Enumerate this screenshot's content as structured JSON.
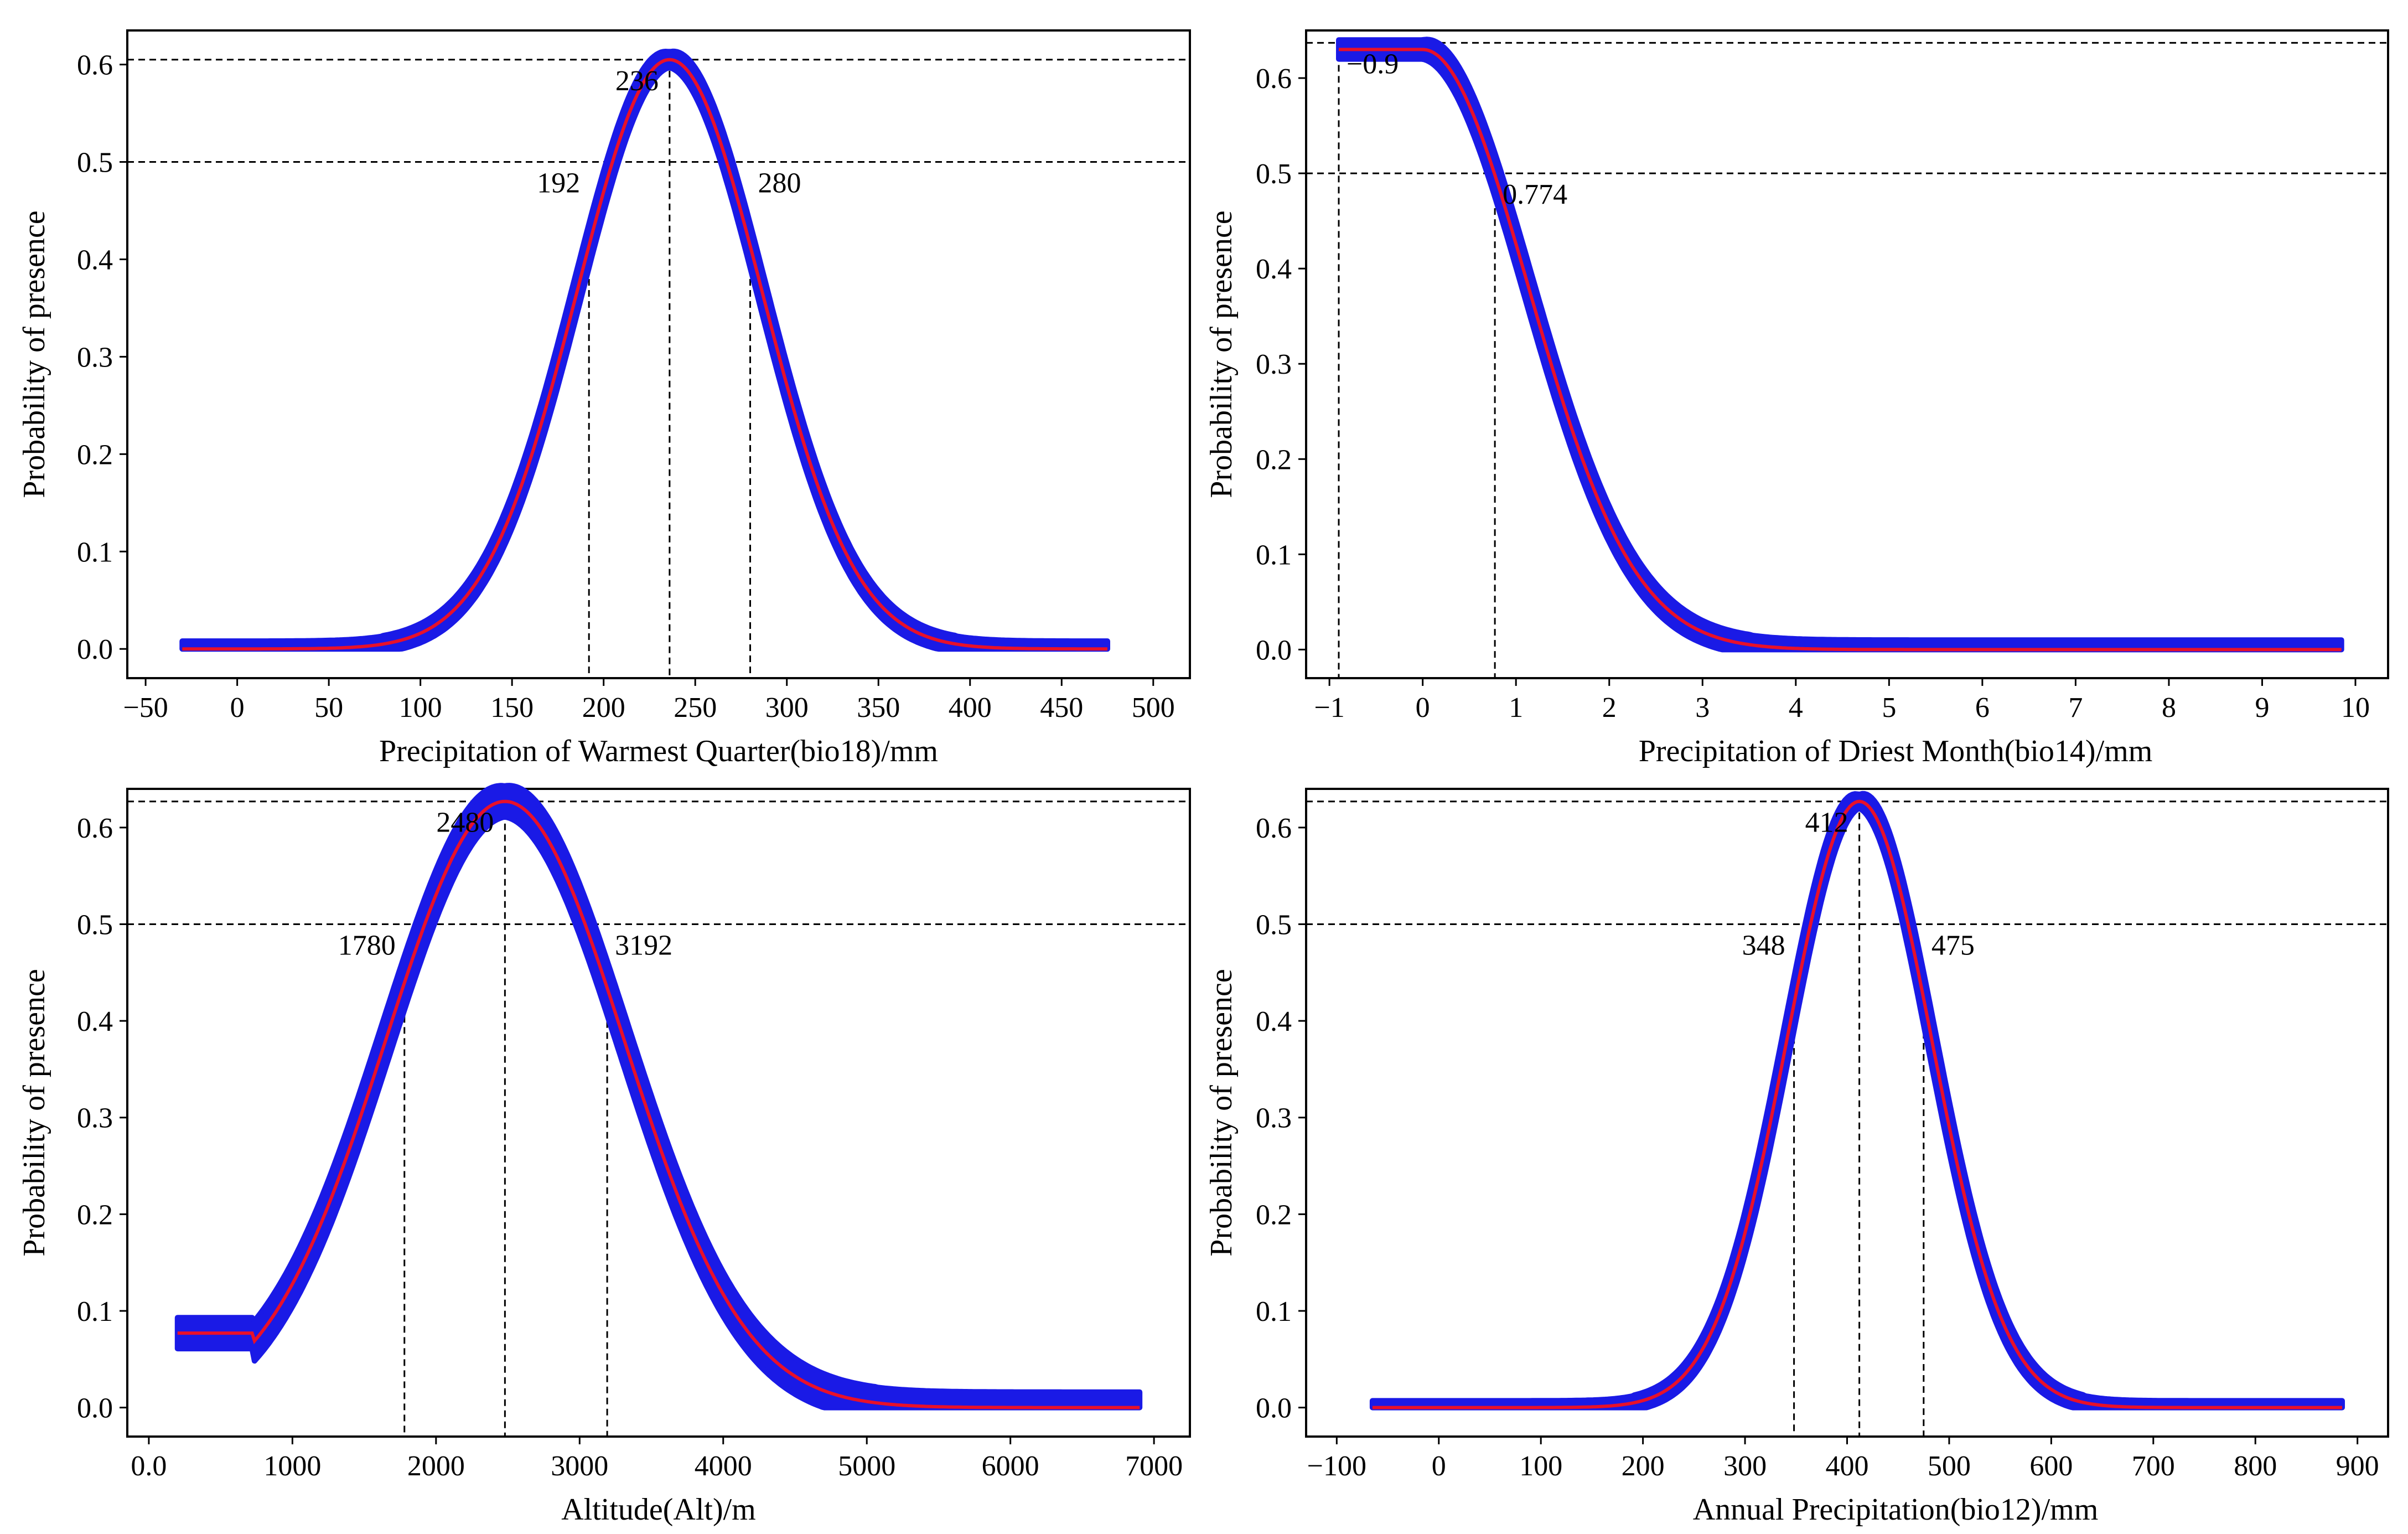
{
  "chart_data": [
    {
      "type": "line",
      "id": "bio18",
      "xlabel": "Precipitation of Warmest Quarter(bio18)/mm",
      "ylabel": "Probability of presence",
      "xlim": [
        -60,
        520
      ],
      "ylim": [
        -0.03,
        0.635
      ],
      "xticks": [
        -50,
        0,
        50,
        100,
        150,
        200,
        250,
        300,
        350,
        400,
        450,
        500
      ],
      "yticks": [
        0.0,
        0.1,
        0.2,
        0.3,
        0.4,
        0.5,
        0.6
      ],
      "curve": {
        "kind": "gauss",
        "mu": 236,
        "sigma": 50.5,
        "peak": 0.605,
        "xmin": -30,
        "xmax": 475,
        "band": 0.008
      },
      "ref_lines": {
        "horizontal": [
          0.605,
          0.5
        ],
        "vertical": [
          192,
          236,
          280
        ]
      },
      "annotations": [
        {
          "text": "236",
          "x": 236,
          "y": 0.605,
          "pos": "left"
        },
        {
          "text": "192",
          "x": 192,
          "y": 0.5,
          "pos": "below-left"
        },
        {
          "text": "280",
          "x": 280,
          "y": 0.5,
          "pos": "below-right"
        }
      ]
    },
    {
      "type": "line",
      "id": "bio14",
      "xlabel": "Precipitation of Driest Month(bio14)/mm",
      "ylabel": "Probability of presence",
      "xlim": [
        -1.25,
        10.35
      ],
      "ylim": [
        -0.03,
        0.65
      ],
      "xticks": [
        -1,
        0,
        1,
        2,
        3,
        4,
        5,
        6,
        7,
        8,
        9,
        10
      ],
      "yticks": [
        0.0,
        0.1,
        0.2,
        0.3,
        0.4,
        0.5,
        0.6
      ],
      "curve": {
        "kind": "halfgauss",
        "mu": 0,
        "sigma": 1.13,
        "peak": 0.63,
        "xmin": -0.9,
        "xmax": 9.85,
        "band": 0.01
      },
      "ref_lines": {
        "horizontal": [
          0.637,
          0.5
        ],
        "vertical": [
          -0.9,
          0.774
        ]
      },
      "annotations": [
        {
          "text": "−0.9",
          "x": -0.9,
          "y": 0.637,
          "pos": "below-right"
        },
        {
          "text": "0.774",
          "x": 0.774,
          "y": 0.5,
          "pos": "below-right"
        }
      ]
    },
    {
      "type": "line",
      "id": "alt",
      "xlabel": "Altitude(Alt)/m",
      "ylabel": "Probability of presence",
      "xlim": [
        -150,
        7250
      ],
      "ylim": [
        -0.03,
        0.64
      ],
      "xticks": [
        0,
        1000,
        2000,
        3000,
        4000,
        5000,
        6000,
        7000
      ],
      "xtick_labels": [
        "0.0",
        "1000",
        "2000",
        "3000",
        "4000",
        "5000",
        "6000",
        "7000"
      ],
      "yticks": [
        0.0,
        0.1,
        0.2,
        0.3,
        0.4,
        0.5,
        0.6
      ],
      "curve": {
        "kind": "gauss_floor",
        "mu": 2480,
        "sigma": 830,
        "peak": 0.627,
        "xmin": 200,
        "xmax": 6900,
        "floor": 0.077,
        "floor_until": 730,
        "band": 0.016
      },
      "ref_lines": {
        "horizontal": [
          0.627,
          0.5
        ],
        "vertical": [
          1780,
          2480,
          3192
        ]
      },
      "annotations": [
        {
          "text": "2480",
          "x": 2480,
          "y": 0.627,
          "pos": "left"
        },
        {
          "text": "1780",
          "x": 1780,
          "y": 0.5,
          "pos": "below-left"
        },
        {
          "text": "3192",
          "x": 3192,
          "y": 0.5,
          "pos": "below-right"
        }
      ]
    },
    {
      "type": "line",
      "id": "bio12",
      "xlabel": "Annual Precipitation(bio12)/mm",
      "ylabel": "Probability of presence",
      "xlim": [
        -130,
        930
      ],
      "ylim": [
        -0.03,
        0.64
      ],
      "xticks": [
        -100,
        0,
        100,
        200,
        300,
        400,
        500,
        600,
        700,
        800,
        900
      ],
      "yticks": [
        0.0,
        0.1,
        0.2,
        0.3,
        0.4,
        0.5,
        0.6
      ],
      "curve": {
        "kind": "gauss",
        "mu": 412,
        "sigma": 71,
        "peak": 0.627,
        "xmin": -65,
        "xmax": 885,
        "band": 0.007
      },
      "ref_lines": {
        "horizontal": [
          0.627,
          0.5
        ],
        "vertical": [
          348,
          412,
          475
        ]
      },
      "annotations": [
        {
          "text": "412",
          "x": 412,
          "y": 0.627,
          "pos": "left"
        },
        {
          "text": "348",
          "x": 348,
          "y": 0.5,
          "pos": "below-left"
        },
        {
          "text": "475",
          "x": 475,
          "y": 0.5,
          "pos": "below-right"
        }
      ]
    }
  ],
  "colors": {
    "band": "#1a1ae6",
    "mean": "#e8102a",
    "axis": "#000000"
  }
}
